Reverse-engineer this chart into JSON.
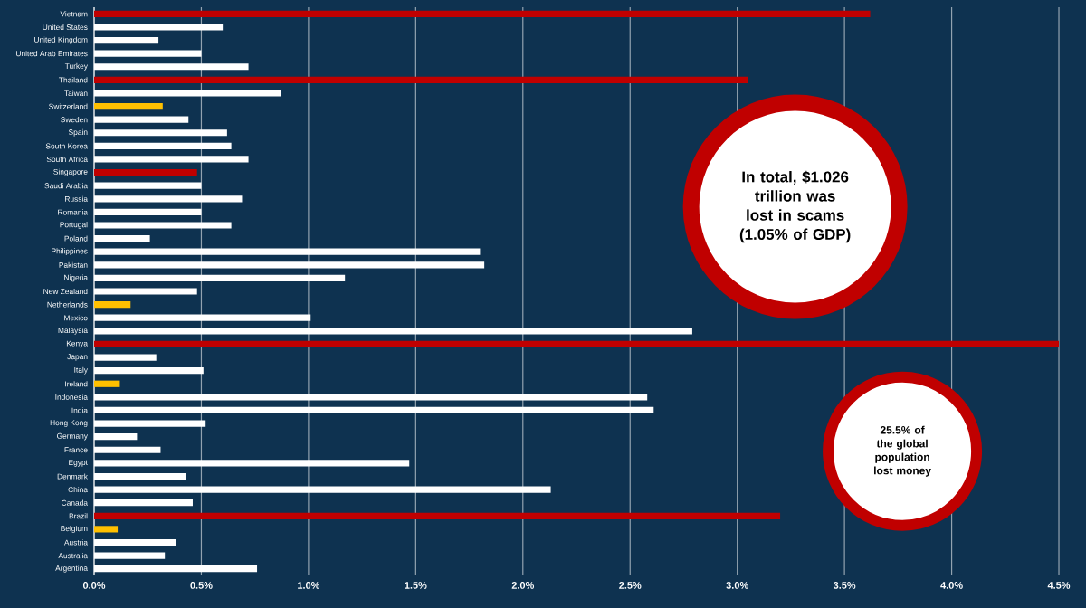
{
  "chart_data": {
    "type": "bar",
    "orientation": "horizontal",
    "categories": [
      "Vietnam",
      "United States",
      "United Kingdom",
      "United Arab Emirates",
      "Turkey",
      "Thailand",
      "Taiwan",
      "Switzerland",
      "Sweden",
      "Spain",
      "South Korea",
      "South Africa",
      "Singapore",
      "Saudi Arabia",
      "Russia",
      "Romania",
      "Portugal",
      "Poland",
      "Philippines",
      "Pakistan",
      "Nigeria",
      "New Zealand",
      "Netherlands",
      "Mexico",
      "Malaysia",
      "Kenya",
      "Japan",
      "Italy",
      "Ireland",
      "Indonesia",
      "India",
      "Hong Kong",
      "Germany",
      "France",
      "Egypt",
      "Denmark",
      "China",
      "Canada",
      "Brazil",
      "Belgium",
      "Austria",
      "Australia",
      "Argentina"
    ],
    "values": [
      3.62,
      0.6,
      0.3,
      0.5,
      0.72,
      3.05,
      0.87,
      0.32,
      0.44,
      0.62,
      0.64,
      0.72,
      0.48,
      0.5,
      0.69,
      0.5,
      0.64,
      0.26,
      1.8,
      1.82,
      1.17,
      0.48,
      0.17,
      1.01,
      2.79,
      4.5,
      0.29,
      0.51,
      0.12,
      2.58,
      2.61,
      0.52,
      0.2,
      0.31,
      1.47,
      0.43,
      2.13,
      0.46,
      3.2,
      0.11,
      0.38,
      0.33,
      0.76
    ],
    "colors": [
      "#c00000",
      "#ffffff",
      "#ffffff",
      "#ffffff",
      "#ffffff",
      "#c00000",
      "#ffffff",
      "#ffc000",
      "#ffffff",
      "#ffffff",
      "#ffffff",
      "#ffffff",
      "#c00000",
      "#ffffff",
      "#ffffff",
      "#ffffff",
      "#ffffff",
      "#ffffff",
      "#ffffff",
      "#ffffff",
      "#ffffff",
      "#ffffff",
      "#ffc000",
      "#ffffff",
      "#ffffff",
      "#c00000",
      "#ffffff",
      "#ffffff",
      "#ffc000",
      "#ffffff",
      "#ffffff",
      "#ffffff",
      "#ffffff",
      "#ffffff",
      "#ffffff",
      "#ffffff",
      "#ffffff",
      "#ffffff",
      "#c00000",
      "#ffc000",
      "#ffffff",
      "#ffffff",
      "#ffffff"
    ],
    "xlim": [
      0,
      4.5
    ],
    "xticks": [
      {
        "value": 0,
        "label": "0.0%"
      },
      {
        "value": 0.5,
        "label": "0.5%"
      },
      {
        "value": 1,
        "label": "1.0%"
      },
      {
        "value": 1.5,
        "label": "1.5%"
      },
      {
        "value": 2,
        "label": "2.0%"
      },
      {
        "value": 2.5,
        "label": "2.5%"
      },
      {
        "value": 3,
        "label": "3.0%"
      },
      {
        "value": 3.5,
        "label": "3.5%"
      },
      {
        "value": 4,
        "label": "4.0%"
      },
      {
        "value": 4.5,
        "label": "4.5%"
      }
    ],
    "grid": "x",
    "annotations": [
      "In total, $1.026 trillion was lost in scams (1.05% of GDP)",
      "25.5% of the global population lost money"
    ]
  }
}
